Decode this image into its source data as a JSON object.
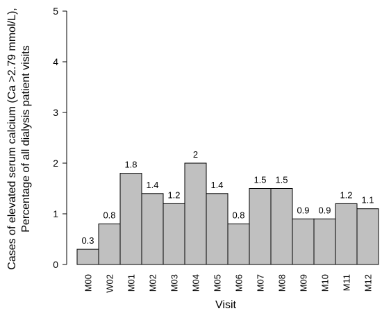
{
  "chart_data": {
    "type": "bar",
    "title": "",
    "xlabel": "Visit",
    "ylabel_lines": [
      "Cases of elevated serum calcium (Ca >2.79 mmol/L),",
      "Percentage of all dialysis patient visits"
    ],
    "categories": [
      "M00",
      "W02",
      "M01",
      "M02",
      "M03",
      "M04",
      "M05",
      "M06",
      "M07",
      "M08",
      "M09",
      "M10",
      "M11",
      "M12"
    ],
    "values": [
      0.3,
      0.8,
      1.8,
      1.4,
      1.2,
      2,
      1.4,
      0.8,
      1.5,
      1.5,
      0.9,
      0.9,
      1.2,
      1.1
    ],
    "value_labels": [
      "0.3",
      "0.8",
      "1.8",
      "1.4",
      "1.2",
      "2",
      "1.4",
      "0.8",
      "1.5",
      "1.5",
      "0.9",
      "0.9",
      "1.2",
      "1.1"
    ],
    "y_ticks": [
      "0",
      "1",
      "2",
      "3",
      "4",
      "5"
    ],
    "ylim": [
      0,
      5
    ],
    "grid": false,
    "legend": "none",
    "bar_color": "#c0c0c0",
    "bar_edge_color": "#000000"
  }
}
